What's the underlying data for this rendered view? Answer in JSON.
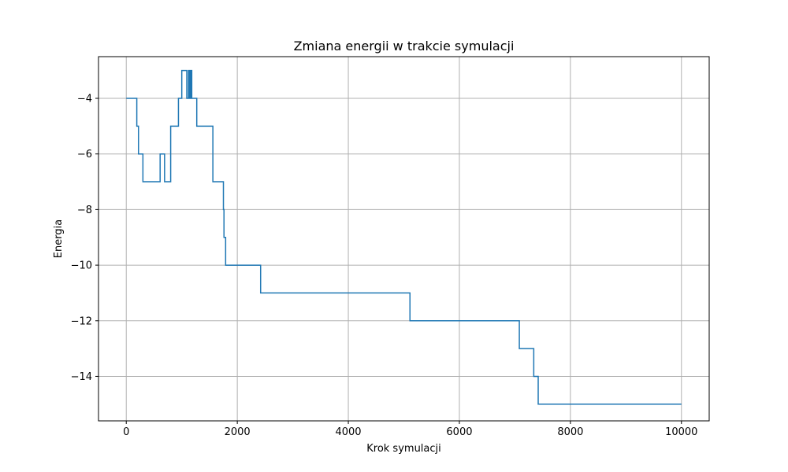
{
  "chart_data": {
    "type": "line",
    "title": "Zmiana energii w trakcie symulacji",
    "xlabel": "Krok symulacji",
    "ylabel": "Energia",
    "xlim": [
      -500,
      10500
    ],
    "ylim": [
      -15.6,
      -2.5
    ],
    "xticks": [
      0,
      2000,
      4000,
      6000,
      8000,
      10000
    ],
    "yticks": [
      -4,
      -6,
      -8,
      -10,
      -12,
      -14
    ],
    "xtick_labels": [
      "0",
      "2000",
      "4000",
      "6000",
      "8000",
      "10000"
    ],
    "ytick_labels": [
      "−4",
      "−6",
      "−8",
      "−10",
      "−12",
      "−14"
    ],
    "grid": true,
    "line_color": "#1f77b4",
    "step": "post",
    "series": [
      {
        "x": [
          0,
          190,
          220,
          260,
          300,
          610,
          690,
          760,
          800,
          940,
          980,
          1000,
          1090,
          1120,
          1140,
          1160,
          1180,
          1210,
          1270,
          1550,
          1560,
          1750,
          1760,
          1775,
          1790,
          2420,
          5110,
          7080,
          7340,
          7420,
          10000
        ],
        "y": [
          -4,
          -5,
          -6,
          -6,
          -7,
          -6,
          -7,
          -7,
          -5,
          -4,
          -4,
          -3,
          -4,
          -3,
          -4,
          -3,
          -4,
          -4,
          -5,
          -5,
          -7,
          -8,
          -9,
          -9,
          -10,
          -11,
          -12,
          -13,
          -14,
          -15,
          -15
        ]
      }
    ]
  }
}
